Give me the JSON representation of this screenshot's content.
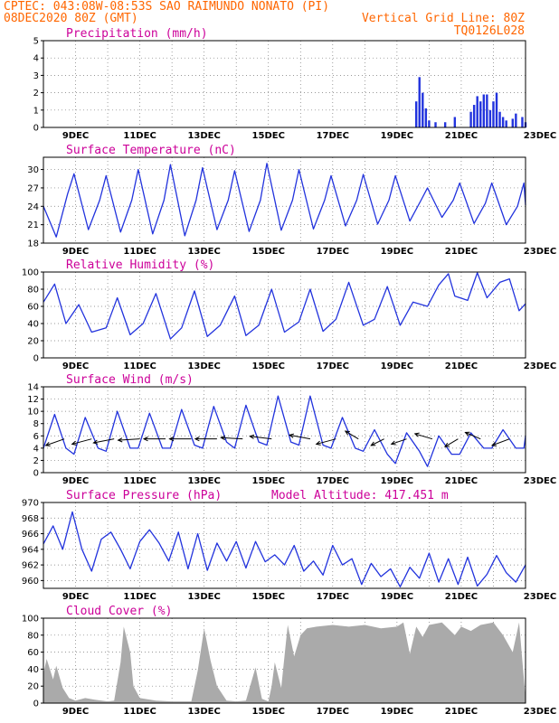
{
  "header": {
    "line1": "CPTEC:   043:08W-08:53S  SAO RAIMUNDO NONATO (PI)",
    "line2_left": "08DEC2020 80Z (GMT)",
    "line2_right": "Vertical Grid Line: 80Z",
    "line3_right": "TQ0126L028"
  },
  "colors": {
    "header": "#ff6600",
    "title": "#cc0099",
    "line": "#2233dd",
    "cloud": "#aaaaaa",
    "arrow": "#000000"
  },
  "x_labels": [
    "9DEC",
    "11DEC",
    "13DEC",
    "15DEC",
    "17DEC",
    "19DEC",
    "21DEC",
    "23DEC"
  ],
  "chart_data": [
    {
      "id": "precip",
      "type": "bar",
      "title": "Precipitation (mm/h)",
      "ylim": [
        0,
        5
      ],
      "yticks": [
        0,
        1,
        2,
        3,
        4,
        5
      ],
      "x": [
        19.6,
        19.7,
        19.8,
        19.9,
        20.0,
        20.2,
        20.5,
        20.8,
        21.3,
        21.4,
        21.5,
        21.6,
        21.7,
        21.8,
        21.9,
        22.0,
        22.1,
        22.2,
        22.3,
        22.4,
        22.6,
        22.7,
        22.9,
        23.0
      ],
      "values": [
        1.5,
        2.9,
        2.0,
        1.1,
        0.4,
        0.3,
        0.3,
        0.6,
        0.9,
        1.3,
        1.8,
        1.5,
        1.9,
        1.9,
        1.0,
        1.5,
        2.0,
        0.9,
        0.6,
        0.4,
        0.5,
        0.8,
        0.6,
        0.3
      ]
    },
    {
      "id": "temp",
      "type": "line",
      "title": "Surface Temperature (nC)",
      "ylim": [
        18,
        32
      ],
      "yticks": [
        18,
        21,
        24,
        27,
        30
      ],
      "y_tick_labels": [
        "18",
        "21",
        "24",
        "27",
        "30"
      ],
      "x": [
        8.0,
        8.4,
        8.75,
        8.95,
        9.4,
        9.75,
        9.95,
        10.4,
        10.75,
        10.95,
        11.4,
        11.75,
        11.95,
        12.4,
        12.75,
        12.95,
        13.4,
        13.75,
        13.95,
        14.4,
        14.75,
        14.95,
        15.4,
        15.75,
        15.95,
        16.4,
        16.75,
        16.95,
        17.4,
        17.75,
        17.95,
        18.4,
        18.75,
        18.95,
        19.4,
        19.75,
        19.95,
        20.4,
        20.75,
        20.95,
        21.4,
        21.75,
        21.95,
        22.4,
        22.75,
        22.95,
        23.0
      ],
      "values": [
        24,
        19,
        26,
        29.3,
        20.2,
        25,
        29,
        19.8,
        25,
        30,
        19.5,
        25,
        30.8,
        19.2,
        25,
        30.3,
        20.2,
        25,
        29.8,
        19.9,
        25,
        31,
        20.1,
        25,
        30,
        20.3,
        25,
        29,
        20.8,
        25,
        29.2,
        21.1,
        25,
        29,
        21.6,
        25,
        27,
        22.2,
        25,
        27.8,
        21.2,
        24.5,
        27.8,
        21,
        24,
        27.8,
        24.2
      ]
    },
    {
      "id": "rh",
      "type": "line",
      "title": "Relative Humidity (%)",
      "ylim": [
        0,
        100
      ],
      "yticks": [
        0,
        20,
        40,
        60,
        80,
        100
      ],
      "x": [
        8.0,
        8.35,
        8.7,
        9.1,
        9.5,
        9.95,
        10.3,
        10.7,
        11.1,
        11.5,
        11.95,
        12.3,
        12.7,
        13.1,
        13.5,
        13.95,
        14.3,
        14.7,
        15.1,
        15.5,
        15.95,
        16.3,
        16.7,
        17.1,
        17.5,
        17.95,
        18.3,
        18.7,
        19.1,
        19.5,
        19.95,
        20.3,
        20.6,
        20.8,
        21.2,
        21.5,
        21.8,
        22.2,
        22.5,
        22.8,
        23.0
      ],
      "values": [
        65,
        86,
        40,
        62,
        30,
        35,
        70,
        27,
        40,
        75,
        22,
        35,
        78,
        25,
        38,
        72,
        26,
        38,
        80,
        30,
        42,
        80,
        31,
        45,
        88,
        38,
        45,
        83,
        38,
        65,
        60,
        85,
        98,
        72,
        67,
        99,
        70,
        88,
        92,
        55,
        63
      ]
    },
    {
      "id": "wind",
      "type": "line",
      "title": "Surface Wind (m/s)",
      "ylim": [
        0,
        14
      ],
      "yticks": [
        0,
        2,
        4,
        6,
        8,
        10,
        12,
        14
      ],
      "x": [
        8.0,
        8.35,
        8.7,
        8.95,
        9.3,
        9.7,
        9.95,
        10.3,
        10.7,
        10.95,
        11.3,
        11.7,
        11.95,
        12.3,
        12.7,
        12.95,
        13.3,
        13.7,
        13.95,
        14.3,
        14.7,
        14.95,
        15.3,
        15.7,
        15.95,
        16.3,
        16.7,
        16.95,
        17.3,
        17.7,
        17.95,
        18.3,
        18.7,
        18.95,
        19.3,
        19.7,
        19.95,
        20.3,
        20.7,
        20.95,
        21.3,
        21.7,
        21.95,
        22.3,
        22.7,
        22.95,
        23.0
      ],
      "values": [
        4,
        9.5,
        4,
        3,
        9,
        4,
        3.5,
        10,
        4,
        4,
        9.7,
        4,
        4,
        10.3,
        4.5,
        4,
        10.8,
        5,
        4,
        11,
        5,
        4.5,
        12.5,
        5,
        4.5,
        12.5,
        4.5,
        4,
        9,
        4,
        3.5,
        7,
        3,
        1.5,
        6.5,
        3.5,
        1,
        6,
        3,
        3,
        6.5,
        4,
        4,
        7,
        4,
        4,
        6
      ]
    },
    {
      "id": "pressure",
      "type": "line",
      "title": "Surface Pressure (hPa)",
      "annotation": "Model Altitude: 417.451  m",
      "ylim": [
        959,
        970
      ],
      "yticks": [
        960,
        962,
        964,
        966,
        968,
        970
      ],
      "x": [
        8.0,
        8.3,
        8.6,
        8.9,
        9.2,
        9.5,
        9.8,
        10.1,
        10.4,
        10.7,
        11.0,
        11.3,
        11.6,
        11.9,
        12.2,
        12.5,
        12.8,
        13.1,
        13.4,
        13.7,
        14.0,
        14.3,
        14.6,
        14.9,
        15.2,
        15.5,
        15.8,
        16.1,
        16.4,
        16.7,
        17.0,
        17.3,
        17.6,
        17.9,
        18.2,
        18.5,
        18.8,
        19.1,
        19.4,
        19.7,
        20.0,
        20.3,
        20.6,
        20.9,
        21.2,
        21.5,
        21.8,
        22.1,
        22.4,
        22.7,
        23.0
      ],
      "values": [
        964.7,
        967,
        964,
        968.8,
        964,
        961.2,
        965.3,
        966.2,
        964,
        961.5,
        965,
        966.5,
        964.8,
        962.5,
        966.2,
        961.5,
        966,
        961.3,
        964.8,
        962.5,
        965,
        961.6,
        965,
        962.4,
        963.3,
        962,
        964.5,
        961.2,
        962.5,
        960.7,
        964.5,
        962,
        962.8,
        959.5,
        962.2,
        960.5,
        961.5,
        959.2,
        961.7,
        960.3,
        963.5,
        959.8,
        962.8,
        959.5,
        963,
        959.3,
        960.8,
        963.2,
        961,
        959.8,
        962
      ]
    },
    {
      "id": "cloud",
      "type": "area",
      "title": "Cloud Cover (%)",
      "ylim": [
        0,
        100
      ],
      "yticks": [
        0,
        20,
        40,
        60,
        80,
        100
      ],
      "x": [
        8.0,
        8.1,
        8.2,
        8.3,
        8.4,
        8.6,
        8.8,
        9.0,
        9.3,
        9.6,
        10.0,
        10.2,
        10.4,
        10.5,
        10.7,
        10.8,
        11.0,
        11.5,
        12.0,
        12.6,
        12.8,
        13.0,
        13.2,
        13.4,
        13.7,
        14.0,
        14.3,
        14.6,
        14.8,
        15.0,
        15.1,
        15.2,
        15.4,
        15.6,
        15.8,
        16.0,
        16.2,
        16.5,
        17.0,
        17.5,
        18.0,
        18.5,
        19.0,
        19.2,
        19.4,
        19.6,
        19.8,
        20.0,
        20.4,
        20.8,
        21.0,
        21.3,
        21.6,
        22.0,
        22.3,
        22.6,
        22.8,
        23.0
      ],
      "values": [
        35,
        52,
        40,
        28,
        44,
        18,
        6,
        3,
        6,
        4,
        2,
        3,
        48,
        90,
        60,
        20,
        6,
        3,
        2,
        2,
        38,
        88,
        50,
        20,
        3,
        2,
        3,
        42,
        5,
        2,
        20,
        48,
        18,
        92,
        55,
        80,
        88,
        90,
        92,
        90,
        92,
        88,
        90,
        95,
        58,
        90,
        78,
        92,
        95,
        80,
        90,
        85,
        92,
        95,
        80,
        60,
        95,
        6
      ]
    }
  ],
  "wind_vectors": [
    {
      "x": 8.65,
      "u": -0.85,
      "v": -0.5
    },
    {
      "x": 9.5,
      "u": -0.9,
      "v": -0.4
    },
    {
      "x": 10.2,
      "u": -0.95,
      "v": -0.3
    },
    {
      "x": 11.0,
      "u": -1.0,
      "v": -0.1
    },
    {
      "x": 11.8,
      "u": -1.0,
      "v": 0.0
    },
    {
      "x": 12.6,
      "u": -1.0,
      "v": 0.0
    },
    {
      "x": 13.4,
      "u": -1.0,
      "v": 0.0
    },
    {
      "x": 14.2,
      "u": -1.0,
      "v": 0.1
    },
    {
      "x": 15.1,
      "u": -1.0,
      "v": 0.2
    },
    {
      "x": 16.3,
      "u": -0.95,
      "v": 0.3
    },
    {
      "x": 17.1,
      "u": -0.9,
      "v": -0.4
    },
    {
      "x": 17.8,
      "u": -0.6,
      "v": 0.6
    },
    {
      "x": 18.6,
      "u": -0.6,
      "v": -0.5
    },
    {
      "x": 19.3,
      "u": -0.7,
      "v": -0.4
    },
    {
      "x": 20.1,
      "u": -0.8,
      "v": 0.4
    },
    {
      "x": 20.9,
      "u": -0.6,
      "v": -0.6
    },
    {
      "x": 21.6,
      "u": -0.7,
      "v": 0.5
    },
    {
      "x": 22.5,
      "u": -0.8,
      "v": -0.5
    }
  ]
}
